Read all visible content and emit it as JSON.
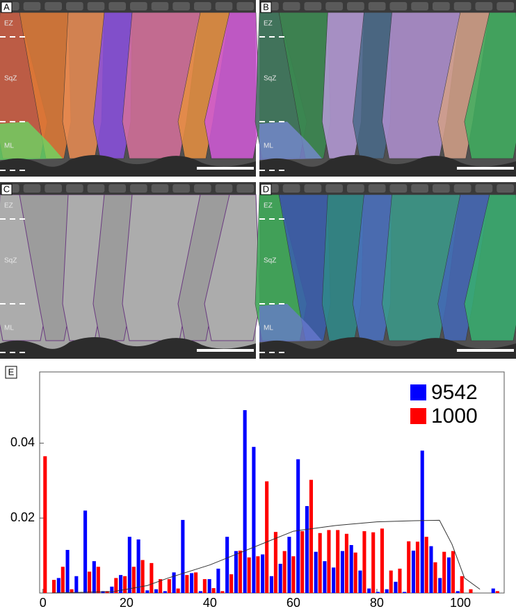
{
  "panels": [
    {
      "label": "A",
      "zones": [
        "EZ",
        "SqZ",
        "ML"
      ]
    },
    {
      "label": "B",
      "zones": [
        "EZ",
        "SqZ",
        "ML"
      ]
    },
    {
      "label": "C",
      "zones": [
        "EZ",
        "SqZ",
        "ML"
      ]
    },
    {
      "label": "D",
      "zones": [
        "EZ",
        "SqZ",
        "ML"
      ]
    }
  ],
  "chart_data": {
    "type": "bar",
    "panel_label": "E",
    "x": [
      0,
      2.125,
      4.25,
      6.375,
      8.5,
      10.625,
      12.75,
      14.875,
      17,
      19.125,
      21.25,
      23.375,
      25.5,
      27.625,
      29.75,
      31.875,
      34,
      36.125,
      38.25,
      40.375,
      42.5,
      44.625,
      46.75,
      48.875,
      51,
      53.125,
      55.25,
      57.375,
      59.5,
      61.625,
      63.75,
      65.875,
      68,
      70.125,
      72.25,
      74.375,
      76.5,
      78.625,
      80.75,
      82.875,
      85,
      87.125,
      89.25,
      91.375,
      93.5,
      95.625,
      97.75,
      99.875,
      102,
      104.125,
      106.25,
      108.375
    ],
    "series": [
      {
        "name": "9542",
        "color": "#0000ff",
        "values": [
          0,
          0,
          0.004,
          0.0115,
          0.0045,
          0.022,
          0.0085,
          0.0005,
          0.0017,
          0.0048,
          0.015,
          0.0143,
          0.0007,
          0.001,
          0.0005,
          0.0055,
          0.0195,
          0.0053,
          0.0005,
          0.0037,
          0.0065,
          0.015,
          0.0112,
          0.0488,
          0.039,
          0.0103,
          0.0045,
          0.0078,
          0.015,
          0.0357,
          0.0232,
          0.011,
          0.0085,
          0.0068,
          0.0112,
          0.0128,
          0.006,
          0.0012,
          0.0003,
          0.001,
          0.003,
          0.0003,
          0.0113,
          0.038,
          0.0125,
          0.004,
          0.0095,
          0.0005,
          0,
          0,
          0,
          0.0012
        ]
      },
      {
        "name": "1000",
        "color": "#ff0000",
        "values": [
          0.0365,
          0.0035,
          0.007,
          0.001,
          0,
          0.0057,
          0.007,
          0.0005,
          0.004,
          0.0045,
          0.007,
          0.0088,
          0.008,
          0.0037,
          0.0037,
          0.0012,
          0.0048,
          0.0055,
          0.0037,
          0.0013,
          0.0005,
          0.005,
          0.0113,
          0.0095,
          0.0098,
          0.0298,
          0.0163,
          0.0112,
          0.0098,
          0.0165,
          0.0302,
          0.016,
          0.0168,
          0.0168,
          0.0158,
          0.0108,
          0.0165,
          0.0162,
          0.0172,
          0.006,
          0.0065,
          0.0138,
          0.0137,
          0.015,
          0.0082,
          0.011,
          0.0112,
          0.0045,
          0.001,
          0,
          0,
          0.0005
        ]
      }
    ],
    "curve": {
      "color": "#333333",
      "x": [
        2,
        10,
        17,
        25,
        30,
        40,
        50,
        60,
        70,
        80,
        89,
        95,
        98,
        101,
        104.7
      ],
      "y": [
        0,
        0.0002,
        0.0004,
        0.002,
        0.004,
        0.0075,
        0.012,
        0.0165,
        0.018,
        0.019,
        0.0193,
        0.0194,
        0.013,
        0.004,
        0.001
      ]
    },
    "xlim": [
      -0.8,
      110.5
    ],
    "ylim": [
      0,
      0.059
    ],
    "xticks": [
      0,
      20,
      40,
      60,
      80,
      100
    ],
    "yticks": [
      0.02,
      0.04
    ],
    "legend": "top-right"
  }
}
